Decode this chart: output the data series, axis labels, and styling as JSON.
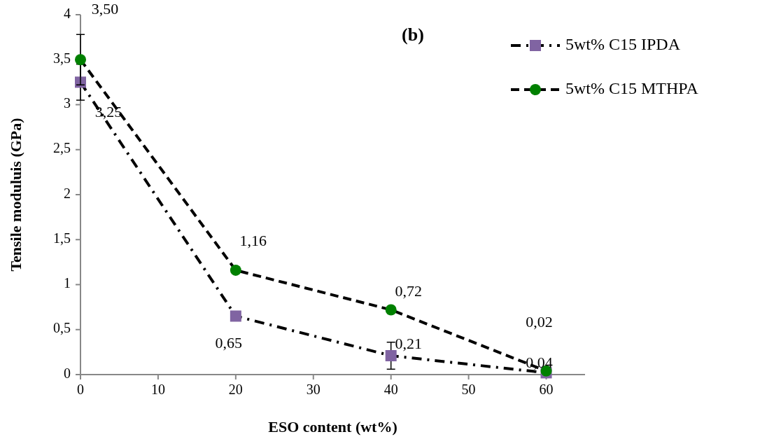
{
  "chart_data": {
    "type": "line",
    "xlabel": "ESO content (wt%)",
    "ylabel": "Tensile moduluis (GPa)",
    "annotations": [
      "(b)"
    ],
    "x": [
      0,
      20,
      40,
      60
    ],
    "xlim": [
      0,
      65
    ],
    "xticks": [
      0,
      10,
      20,
      30,
      40,
      50,
      60
    ],
    "ylim": [
      0,
      4
    ],
    "yticks": [
      0,
      {
        "value": 0.5,
        "label": "0,5"
      },
      1,
      {
        "value": 1.5,
        "label": "1,5"
      },
      2,
      {
        "value": 2.5,
        "label": "2,5"
      },
      3,
      {
        "value": 3.5,
        "label": "3,5"
      },
      4
    ],
    "grid": false,
    "legend": "top right",
    "series": [
      {
        "name": "5wt% C15 IPDA",
        "color": "#8064a2",
        "marker": "square",
        "line_style": "dashdot",
        "values": [
          3.25,
          0.65,
          0.21,
          0.02
        ],
        "errors": [
          0.2,
          null,
          0.15,
          null
        ],
        "value_labels": [
          "3,25",
          "0,65",
          "0,21",
          "0,02"
        ]
      },
      {
        "name": "5wt% C15 MTHPA",
        "color": "#008000",
        "marker": "circle",
        "line_style": "dashed",
        "values": [
          3.5,
          1.16,
          0.72,
          0.04
        ],
        "errors": [
          0.28,
          null,
          null,
          null
        ],
        "value_labels": [
          "3,50",
          "1,16",
          "0,72",
          "0,04"
        ]
      }
    ]
  }
}
